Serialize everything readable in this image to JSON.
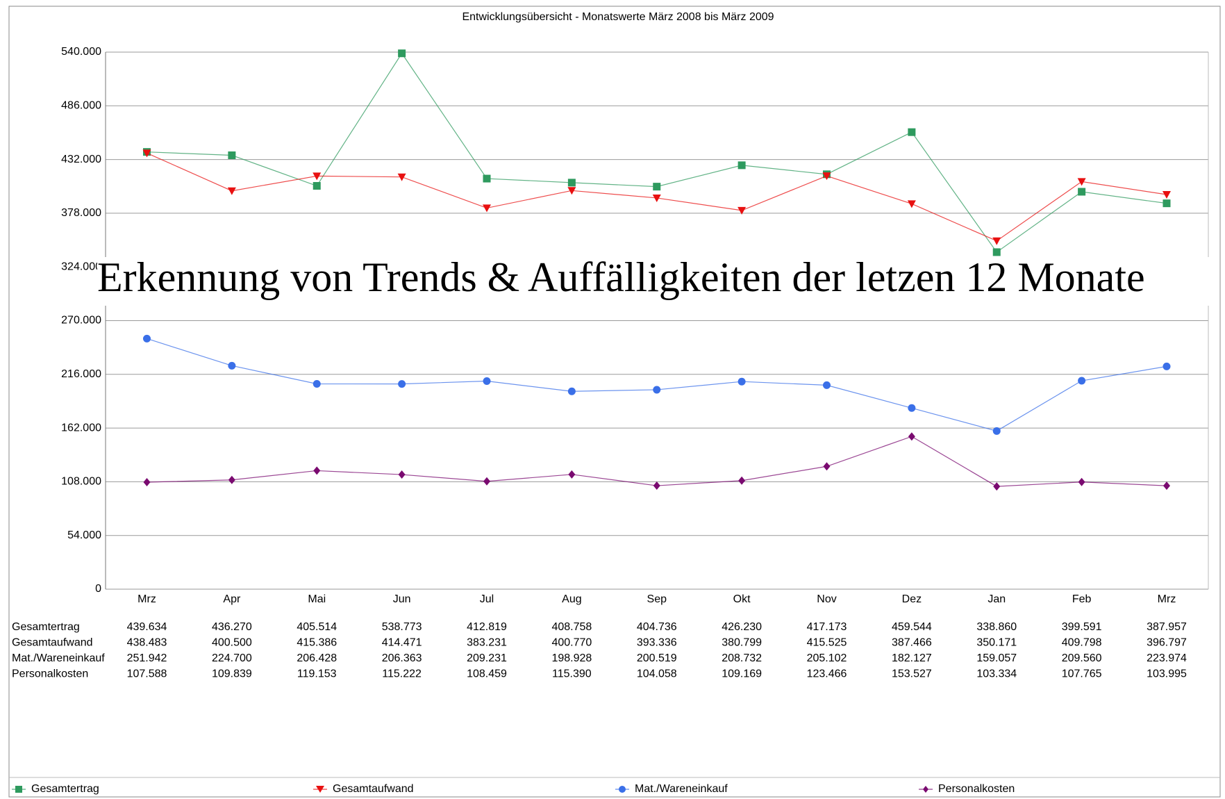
{
  "chart_data": {
    "type": "line",
    "title": "Entwicklungsübersicht - Monatswerte März 2008 bis März 2009",
    "annotation": "Erkennung von Trends & Auffälligkeiten der letzen 12 Monate",
    "categories": [
      "Mrz",
      "Apr",
      "Mai",
      "Jun",
      "Jul",
      "Aug",
      "Sep",
      "Okt",
      "Nov",
      "Dez",
      "Jan",
      "Feb",
      "Mrz"
    ],
    "ylim": [
      0,
      540000
    ],
    "yticks": [
      0,
      {
        "value": 54000,
        "label": "54.000"
      },
      {
        "value": 108000,
        "label": "108.000"
      },
      {
        "value": 162000,
        "label": "162.000"
      },
      {
        "value": 216000,
        "label": "216.000"
      },
      {
        "value": 270000,
        "label": "270.000"
      },
      {
        "value": 324000,
        "label": "324.000"
      },
      {
        "value": 378000,
        "label": "378.000"
      },
      {
        "value": 432000,
        "label": "432.000"
      },
      {
        "value": 486000,
        "label": "486.000"
      },
      {
        "value": 540000,
        "label": "540.000"
      }
    ],
    "grid": true,
    "series": [
      {
        "name": "Gesamtertrag",
        "color": "#2e9a5e",
        "marker": "square",
        "values": [
          439634,
          436270,
          405514,
          538773,
          412819,
          408758,
          404736,
          426230,
          417173,
          459544,
          338860,
          399591,
          387957
        ],
        "value_labels": [
          "439.634",
          "436.270",
          "405.514",
          "538.773",
          "412.819",
          "408.758",
          "404.736",
          "426.230",
          "417.173",
          "459.544",
          "338.860",
          "399.591",
          "387.957"
        ]
      },
      {
        "name": "Gesamtaufwand",
        "color": "#e81010",
        "marker": "triangle-down",
        "values": [
          438483,
          400500,
          415386,
          414471,
          383231,
          400770,
          393336,
          380799,
          415525,
          387466,
          350171,
          409798,
          396797
        ],
        "value_labels": [
          "438.483",
          "400.500",
          "415.386",
          "414.471",
          "383.231",
          "400.770",
          "393.336",
          "380.799",
          "415.525",
          "387.466",
          "350.171",
          "409.798",
          "396.797"
        ]
      },
      {
        "name": "Mat./Wareneinkauf",
        "color": "#3a6fe8",
        "marker": "circle",
        "values": [
          251942,
          224700,
          206428,
          206363,
          209231,
          198928,
          200519,
          208732,
          205102,
          182127,
          159057,
          209560,
          223974
        ],
        "value_labels": [
          "251.942",
          "224.700",
          "206.428",
          "206.363",
          "209.231",
          "198.928",
          "200.519",
          "208.732",
          "205.102",
          "182.127",
          "159.057",
          "209.560",
          "223.974"
        ]
      },
      {
        "name": "Personalkosten",
        "color": "#7a0a70",
        "marker": "diamond",
        "values": [
          107588,
          109839,
          119153,
          115222,
          108459,
          115390,
          104058,
          109169,
          123466,
          153527,
          103334,
          107765,
          103995
        ],
        "value_labels": [
          "107.588",
          "109.839",
          "119.153",
          "115.222",
          "108.459",
          "115.390",
          "104.058",
          "109.169",
          "123.466",
          "153.527",
          "103.334",
          "107.765",
          "103.995"
        ]
      }
    ]
  }
}
